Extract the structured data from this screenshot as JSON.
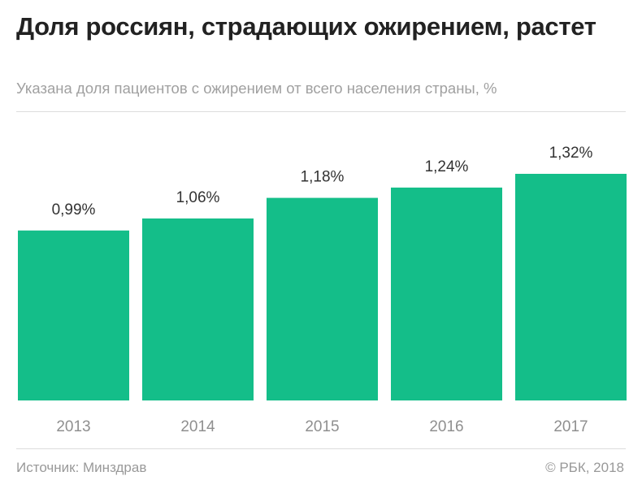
{
  "title": "Доля россиян, страдающих ожирением, растет",
  "subtitle": "Указана доля пациентов с ожирением от всего населения страны, %",
  "source": "Источник: Минздрав",
  "copyright": "© РБК, 2018",
  "colors": {
    "bar": "#14BE89",
    "label": "#333333",
    "tick": "#8f8f8f"
  },
  "chart_data": {
    "type": "bar",
    "categories": [
      "2013",
      "2014",
      "2015",
      "2016",
      "2017"
    ],
    "values": [
      0.99,
      1.06,
      1.18,
      1.24,
      1.32
    ],
    "data_labels": [
      "0,99%",
      "1,06%",
      "1,18%",
      "1,24%",
      "1,32%"
    ],
    "ylim": [
      0,
      1.32
    ],
    "grid": false,
    "legend": "none"
  }
}
